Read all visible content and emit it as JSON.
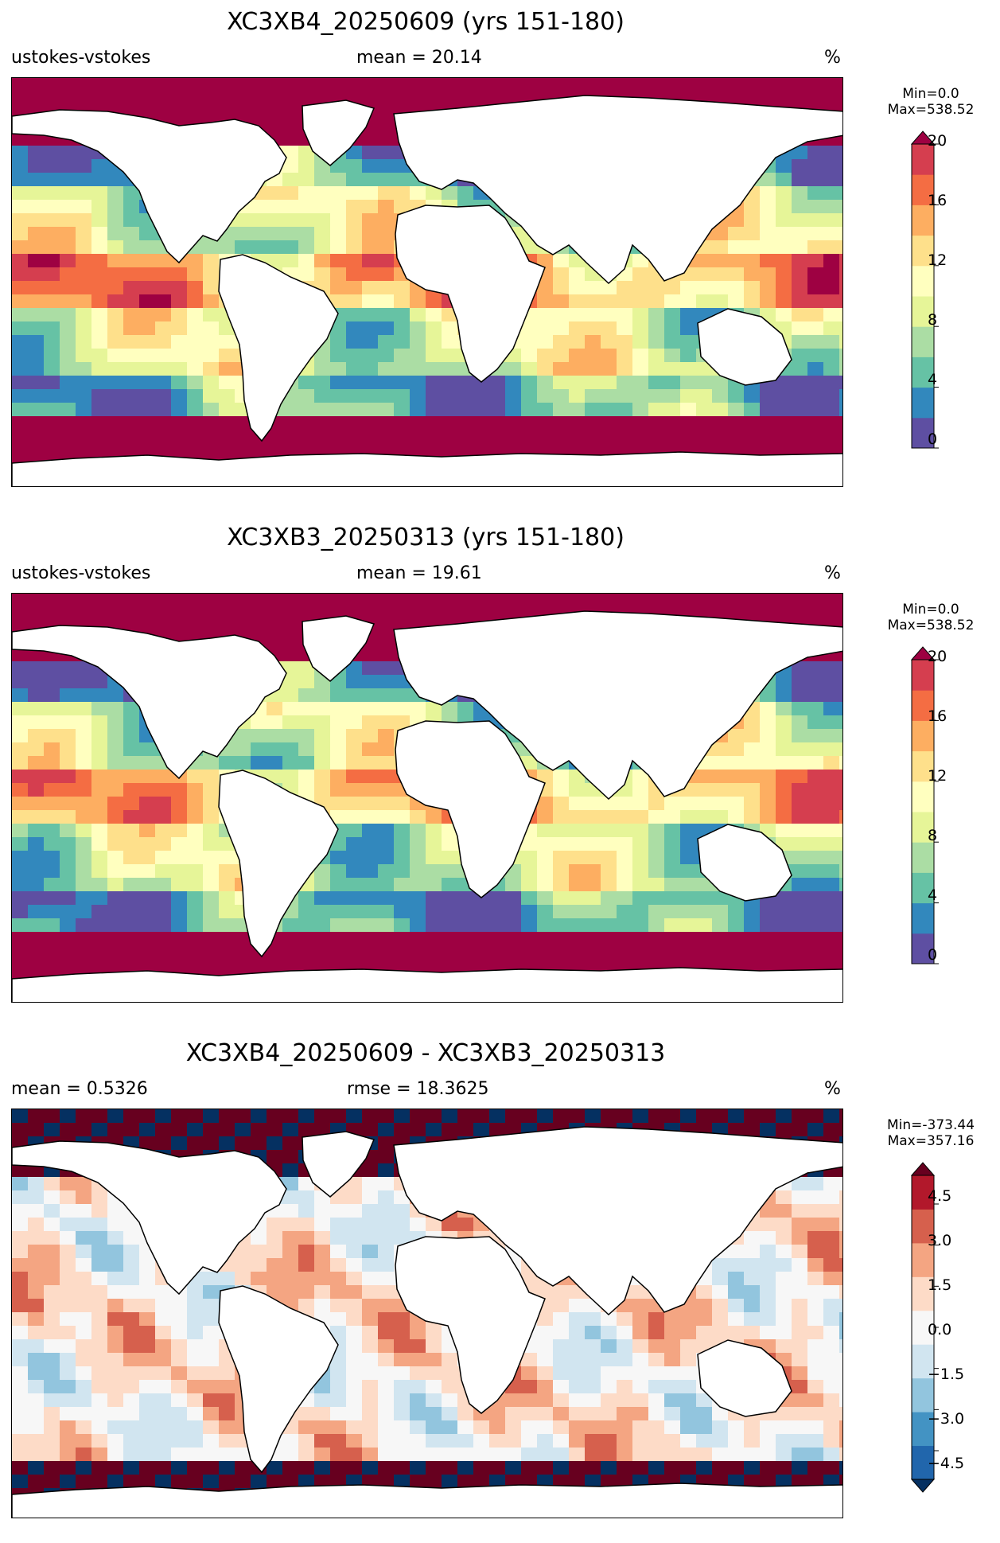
{
  "panels": [
    {
      "title": "XC3XB4_20250609 (yrs 151-180)",
      "left_label": "ustokes-vstokes",
      "center_label": "mean = 20.14",
      "right_label": "%",
      "cb_min": "Min=0.0",
      "cb_max": "Max=538.52",
      "ticks": [
        "20",
        "16",
        "12",
        "8",
        "4",
        "0"
      ],
      "colormap": "Spectral_r",
      "colors": [
        "#5e4fa2",
        "#3288bd",
        "#66c2a5",
        "#abdda4",
        "#e6f598",
        "#ffffbf",
        "#fee08b",
        "#fdae61",
        "#f46d43",
        "#d53e4f",
        "#9e0142"
      ]
    },
    {
      "title": "XC3XB3_20250313 (yrs 151-180)",
      "left_label": "ustokes-vstokes",
      "center_label": "mean = 19.61",
      "right_label": "%",
      "cb_min": "Min=0.0",
      "cb_max": "Max=538.52",
      "ticks": [
        "20",
        "16",
        "12",
        "8",
        "4",
        "0"
      ],
      "colormap": "Spectral_r",
      "colors": [
        "#5e4fa2",
        "#3288bd",
        "#66c2a5",
        "#abdda4",
        "#e6f598",
        "#ffffbf",
        "#fee08b",
        "#fdae61",
        "#f46d43",
        "#d53e4f",
        "#9e0142"
      ]
    },
    {
      "title": "XC3XB4_20250609 - XC3XB3_20250313",
      "left_label": "mean = 0.5326",
      "center_label": "rmse = 18.3625",
      "right_label": "%",
      "cb_min": "Min=-373.44",
      "cb_max": "Max=357.16",
      "ticks": [
        "4.5",
        "3.0",
        "1.5",
        "0.0",
        "−1.5",
        "−3.0",
        "−4.5"
      ],
      "colormap": "RdBu_r",
      "colors": [
        "#053061",
        "#2166ac",
        "#4393c3",
        "#92c5de",
        "#d1e5f0",
        "#f7f7f7",
        "#fddbc7",
        "#f4a582",
        "#d6604d",
        "#b2182b",
        "#67001f"
      ]
    }
  ]
}
